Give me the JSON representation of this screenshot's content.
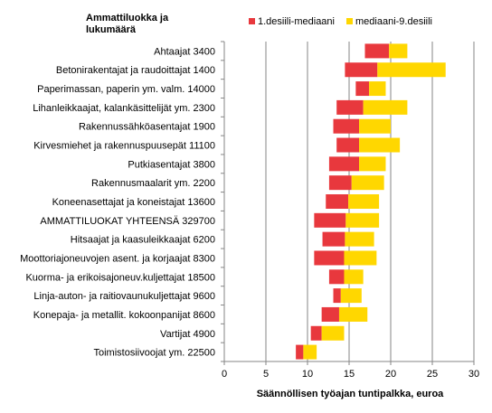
{
  "chart_data": {
    "type": "bar",
    "stacked": true,
    "orientation": "horizontal",
    "category_axis_title": "Ammattiluokka ja lukumäärä",
    "xlabel": "Säännöllisen työajan tuntipalkka, euroa",
    "xlim": [
      0,
      30
    ],
    "xticks": [
      0,
      5,
      10,
      15,
      20,
      25,
      30
    ],
    "grid": "vertical",
    "legend_position": "top",
    "categories": [
      "Ahtaajat  3400",
      "Betonirakentajat ja raudoittajat  1400",
      "Paperimassan,  paperin ym. valm. 14000",
      "Lihanleikkaajat, kalankäsittelijät ym.   2300",
      "Rakennussähköasentajat   1900",
      "Kirvesmiehet ja rakennuspuusepät  11100",
      "Putkiasentajat   3800",
      "Rakennusmaalarit ym.   2200",
      "Koneenasettajat ja koneistajat  13600",
      "AMMATTILUOKAT YHTEENSÄ   329700",
      "Hitsaajat ja kaasuleikkaajat   6200",
      "Moottoriajoneuvojen asent. ja korjaajat 8300",
      "Kuorma- ja erikoisajoneuv.kuljettajat 18500",
      "Linja-auton- ja raitiovaunukuljettajat   9600",
      "Konepaja- ja metallit. kokoonpanijat 8600",
      "Vartijat   4900",
      "Toimistosiivoojat ym. 22500"
    ],
    "decile1": [
      16.9,
      14.5,
      15.8,
      13.5,
      13.1,
      13.5,
      12.6,
      12.6,
      12.2,
      10.8,
      11.8,
      10.8,
      12.6,
      13.1,
      11.7,
      10.4,
      8.6
    ],
    "median": [
      19.8,
      18.4,
      17.4,
      16.7,
      16.2,
      16.2,
      16.2,
      15.3,
      14.9,
      14.6,
      14.5,
      14.4,
      14.4,
      14.0,
      13.8,
      11.7,
      9.5
    ],
    "decile9": [
      22.0,
      26.6,
      19.4,
      22.0,
      20.0,
      21.1,
      19.4,
      19.2,
      18.6,
      18.6,
      18.0,
      18.3,
      16.7,
      16.5,
      17.2,
      14.4,
      11.1
    ],
    "series": [
      {
        "name": "1.desiili-mediaani",
        "color": "#e8383d"
      },
      {
        "name": "mediaani-9.desiili",
        "color": "#ffd700"
      }
    ],
    "gridline_color": "#868686",
    "axis_color": "#868686"
  }
}
